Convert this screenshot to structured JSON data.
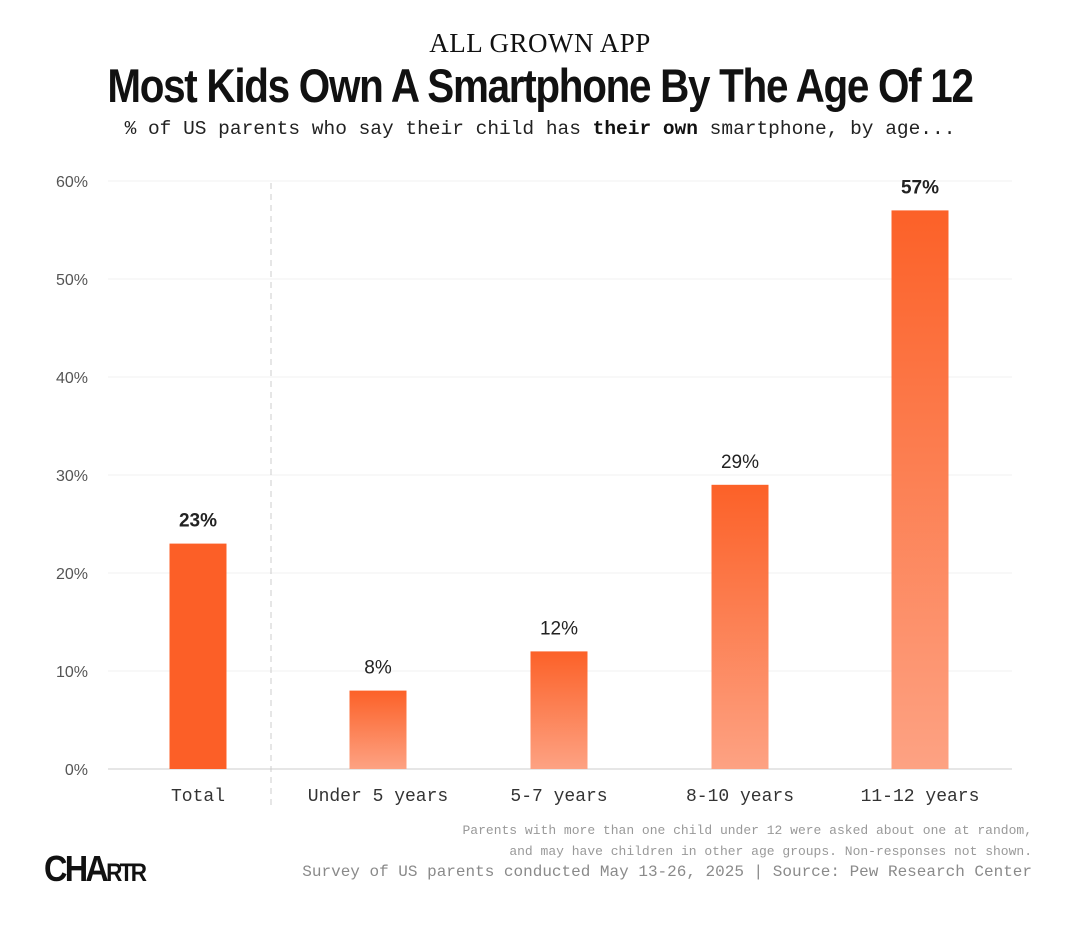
{
  "header": {
    "brand": "ALL GROWN APP",
    "title": "Most Kids Own A Smartphone By The Age Of 12",
    "subtitle_before": "% of US parents who say their child has ",
    "subtitle_bold": "their own",
    "subtitle_after": " smartphone, by age..."
  },
  "chart_data": {
    "type": "bar",
    "title": "Most Kids Own A Smartphone By The Age Of 12",
    "xlabel": "",
    "ylabel": "",
    "categories": [
      "Total",
      "Under 5 years",
      "5-7 years",
      "8-10 years",
      "11-12 years"
    ],
    "values": [
      23,
      8,
      12,
      29,
      57
    ],
    "value_labels": [
      "23%",
      "8%",
      "12%",
      "29%",
      "57%"
    ],
    "ylim": [
      0,
      60
    ],
    "yticks": [
      0,
      10,
      20,
      30,
      40,
      50,
      60
    ],
    "ytick_labels": [
      "0%",
      "10%",
      "20%",
      "30%",
      "40%",
      "50%",
      "60%"
    ],
    "grid": true,
    "colors": {
      "solid": "#fc5f27",
      "gradient_top": "#fc6128",
      "gradient_bottom": "#fda283"
    }
  },
  "footer": {
    "note_line1": "Parents with more than one child under 12 were asked about one at random,",
    "note_line2": "and may have children in other age groups. Non-responses not shown.",
    "source": "Survey of US parents conducted May 13-26, 2025 | Source: Pew Research Center",
    "logo_main": "CHA",
    "logo_small": "RTR"
  }
}
